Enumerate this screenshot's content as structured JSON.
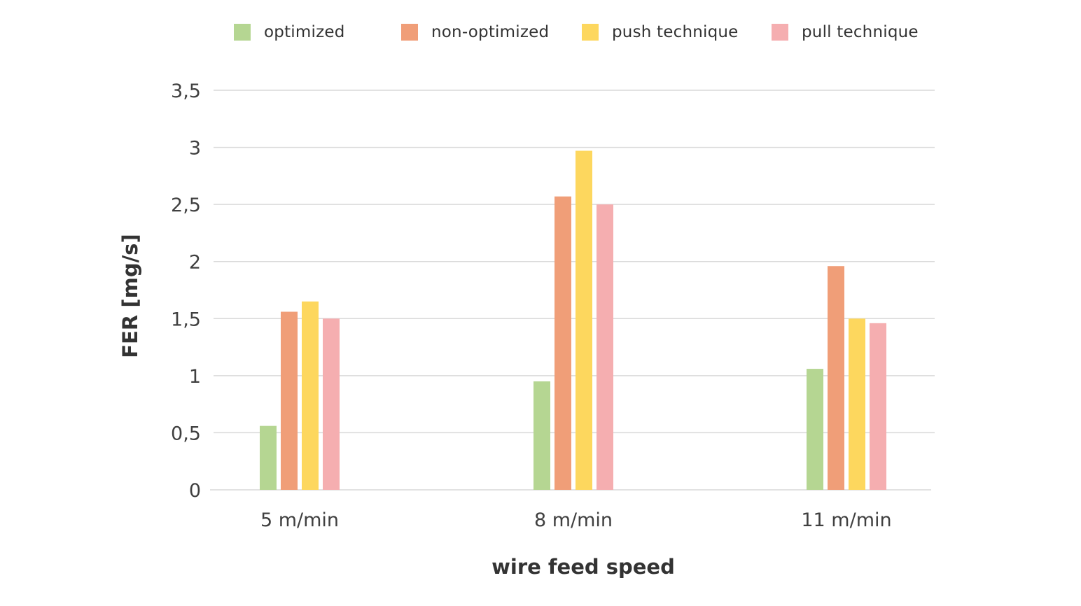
{
  "chart_data": {
    "type": "bar",
    "xlabel": "wire feed speed",
    "ylabel": "FER [mg/s]",
    "categories": [
      "5 m/min",
      "8 m/min",
      "11 m/min"
    ],
    "ylim": [
      0,
      3.5
    ],
    "yticks": [
      0,
      0.5,
      1,
      1.5,
      2,
      2.5,
      3,
      3.5
    ],
    "ytick_labels": [
      "0",
      "0,5",
      "1",
      "1,5",
      "2",
      "2,5",
      "3",
      "3,5"
    ],
    "grid": true,
    "legend_position": "top",
    "series": [
      {
        "name": "optimized",
        "color": "#b5d692",
        "values": [
          0.56,
          0.95,
          1.06
        ]
      },
      {
        "name": "non-optimized",
        "color": "#f09e78",
        "values": [
          1.56,
          2.57,
          1.96
        ]
      },
      {
        "name": "push technique",
        "color": "#fdd75e",
        "values": [
          1.65,
          2.97,
          1.5
        ]
      },
      {
        "name": "pull technique",
        "color": "#f5aeb0",
        "values": [
          1.5,
          2.5,
          1.46
        ]
      }
    ]
  }
}
